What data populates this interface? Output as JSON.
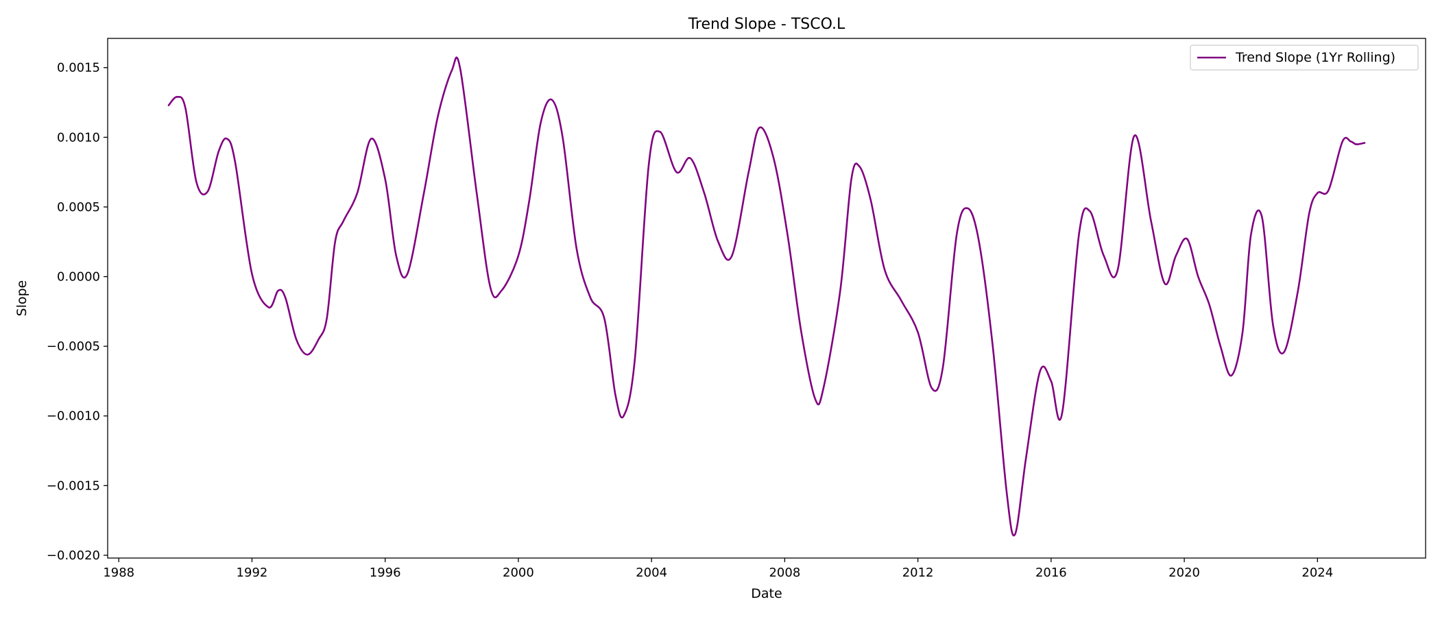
{
  "chart_data": {
    "type": "line",
    "title": "Trend Slope - TSCO.L",
    "xlabel": "Date",
    "ylabel": "Slope",
    "x_axis_type": "date",
    "xlim": [
      "1987-09-01",
      "2027-04-01"
    ],
    "ylim": [
      -0.00202,
      0.00171
    ],
    "x_ticks": [
      "1988",
      "1992",
      "1996",
      "2000",
      "2004",
      "2008",
      "2012",
      "2016",
      "2020",
      "2024"
    ],
    "y_ticks": [
      0.0015,
      0.001,
      0.0005,
      0.0,
      -0.0005,
      -0.001,
      -0.0015,
      -0.002
    ],
    "y_tick_labels": [
      "0.0015",
      "0.0010",
      "0.0005",
      "0.0000",
      "−0.0005",
      "−0.0010",
      "−0.0015",
      "−0.0020"
    ],
    "grid": false,
    "legend_position": "top-right",
    "series": [
      {
        "name": "Trend Slope (1Yr Rolling)",
        "color": "#800080",
        "points": [
          [
            "1989-07-01",
            0.00123
          ],
          [
            "1989-10-01",
            0.00129
          ],
          [
            "1990-01-01",
            0.00121
          ],
          [
            "1990-05-01",
            0.00068
          ],
          [
            "1990-09-01",
            0.00061
          ],
          [
            "1991-01-01",
            0.0009
          ],
          [
            "1991-04-01",
            0.00099
          ],
          [
            "1991-07-01",
            0.00082
          ],
          [
            "1992-01-01",
            2e-05
          ],
          [
            "1992-07-01",
            -0.00022
          ],
          [
            "1992-10-15",
            -0.0001
          ],
          [
            "1993-01-01",
            -0.00015
          ],
          [
            "1993-05-01",
            -0.00045
          ],
          [
            "1993-09-01",
            -0.00056
          ],
          [
            "1994-01-01",
            -0.00045
          ],
          [
            "1994-04-01",
            -0.0003
          ],
          [
            "1994-07-01",
            0.00025
          ],
          [
            "1994-10-01",
            0.0004
          ],
          [
            "1995-03-01",
            0.0006
          ],
          [
            "1995-08-01",
            0.00099
          ],
          [
            "1996-01-01",
            0.0007
          ],
          [
            "1996-05-01",
            0.00015
          ],
          [
            "1996-09-01",
            2e-05
          ],
          [
            "1997-03-01",
            0.0006
          ],
          [
            "1997-08-01",
            0.00115
          ],
          [
            "1998-01-01",
            0.00148
          ],
          [
            "1998-04-01",
            0.0015
          ],
          [
            "1998-10-01",
            0.0006
          ],
          [
            "1999-03-01",
            -8e-05
          ],
          [
            "1999-07-01",
            -0.0001
          ],
          [
            "2000-01-01",
            0.00015
          ],
          [
            "2000-05-01",
            0.00055
          ],
          [
            "2000-09-01",
            0.0011
          ],
          [
            "2001-01-01",
            0.00127
          ],
          [
            "2001-05-01",
            0.001
          ],
          [
            "2001-10-01",
            0.0002
          ],
          [
            "2002-03-01",
            -0.00015
          ],
          [
            "2002-08-01",
            -0.0003
          ],
          [
            "2002-12-01",
            -0.00085
          ],
          [
            "2003-03-01",
            -0.001
          ],
          [
            "2003-07-01",
            -0.0006
          ],
          [
            "2003-12-01",
            0.0008
          ],
          [
            "2004-04-01",
            0.00104
          ],
          [
            "2004-10-01",
            0.00075
          ],
          [
            "2005-03-01",
            0.00085
          ],
          [
            "2005-08-01",
            0.0006
          ],
          [
            "2006-01-01",
            0.00025
          ],
          [
            "2006-06-01",
            0.00015
          ],
          [
            "2006-12-01",
            0.00075
          ],
          [
            "2007-04-01",
            0.00107
          ],
          [
            "2007-09-01",
            0.00085
          ],
          [
            "2008-02-01",
            0.0003
          ],
          [
            "2008-07-01",
            -0.0004
          ],
          [
            "2008-12-01",
            -0.00088
          ],
          [
            "2009-03-01",
            -0.0008
          ],
          [
            "2009-09-01",
            -0.0001
          ],
          [
            "2010-01-01",
            0.0007
          ],
          [
            "2010-04-01",
            0.00079
          ],
          [
            "2010-08-01",
            0.00055
          ],
          [
            "2011-01-01",
            5e-05
          ],
          [
            "2011-07-01",
            -0.00017
          ],
          [
            "2012-01-01",
            -0.0004
          ],
          [
            "2012-06-01",
            -0.0008
          ],
          [
            "2012-10-01",
            -0.00065
          ],
          [
            "2013-03-01",
            0.0003
          ],
          [
            "2013-07-01",
            0.00049
          ],
          [
            "2013-11-01",
            0.00025
          ],
          [
            "2014-04-01",
            -0.0005
          ],
          [
            "2014-09-01",
            -0.00155
          ],
          [
            "2014-12-01",
            -0.00185
          ],
          [
            "2015-04-01",
            -0.0013
          ],
          [
            "2015-09-01",
            -0.00068
          ],
          [
            "2016-01-01",
            -0.00075
          ],
          [
            "2016-05-01",
            -0.00098
          ],
          [
            "2016-11-01",
            0.0003
          ],
          [
            "2017-03-01",
            0.00047
          ],
          [
            "2017-08-01",
            0.00015
          ],
          [
            "2018-01-01",
            5e-05
          ],
          [
            "2018-07-01",
            0.00101
          ],
          [
            "2019-01-01",
            0.0004
          ],
          [
            "2019-06-01",
            -5e-05
          ],
          [
            "2019-10-01",
            0.00015
          ],
          [
            "2020-02-01",
            0.00027
          ],
          [
            "2020-06-01",
            0.0
          ],
          [
            "2020-10-01",
            -0.0002
          ],
          [
            "2021-02-01",
            -0.0005
          ],
          [
            "2021-06-01",
            -0.00071
          ],
          [
            "2021-10-01",
            -0.0004
          ],
          [
            "2022-01-01",
            0.0003
          ],
          [
            "2022-05-01",
            0.00043
          ],
          [
            "2022-09-01",
            -0.00035
          ],
          [
            "2023-01-01",
            -0.00054
          ],
          [
            "2023-06-01",
            -0.0001
          ],
          [
            "2023-10-01",
            0.00045
          ],
          [
            "2024-01-01",
            0.0006
          ],
          [
            "2024-05-01",
            0.00062
          ],
          [
            "2024-10-01",
            0.00097
          ],
          [
            "2025-01-01",
            0.00097
          ],
          [
            "2025-03-01",
            0.00095
          ],
          [
            "2025-06-01",
            0.00096
          ]
        ]
      }
    ]
  }
}
